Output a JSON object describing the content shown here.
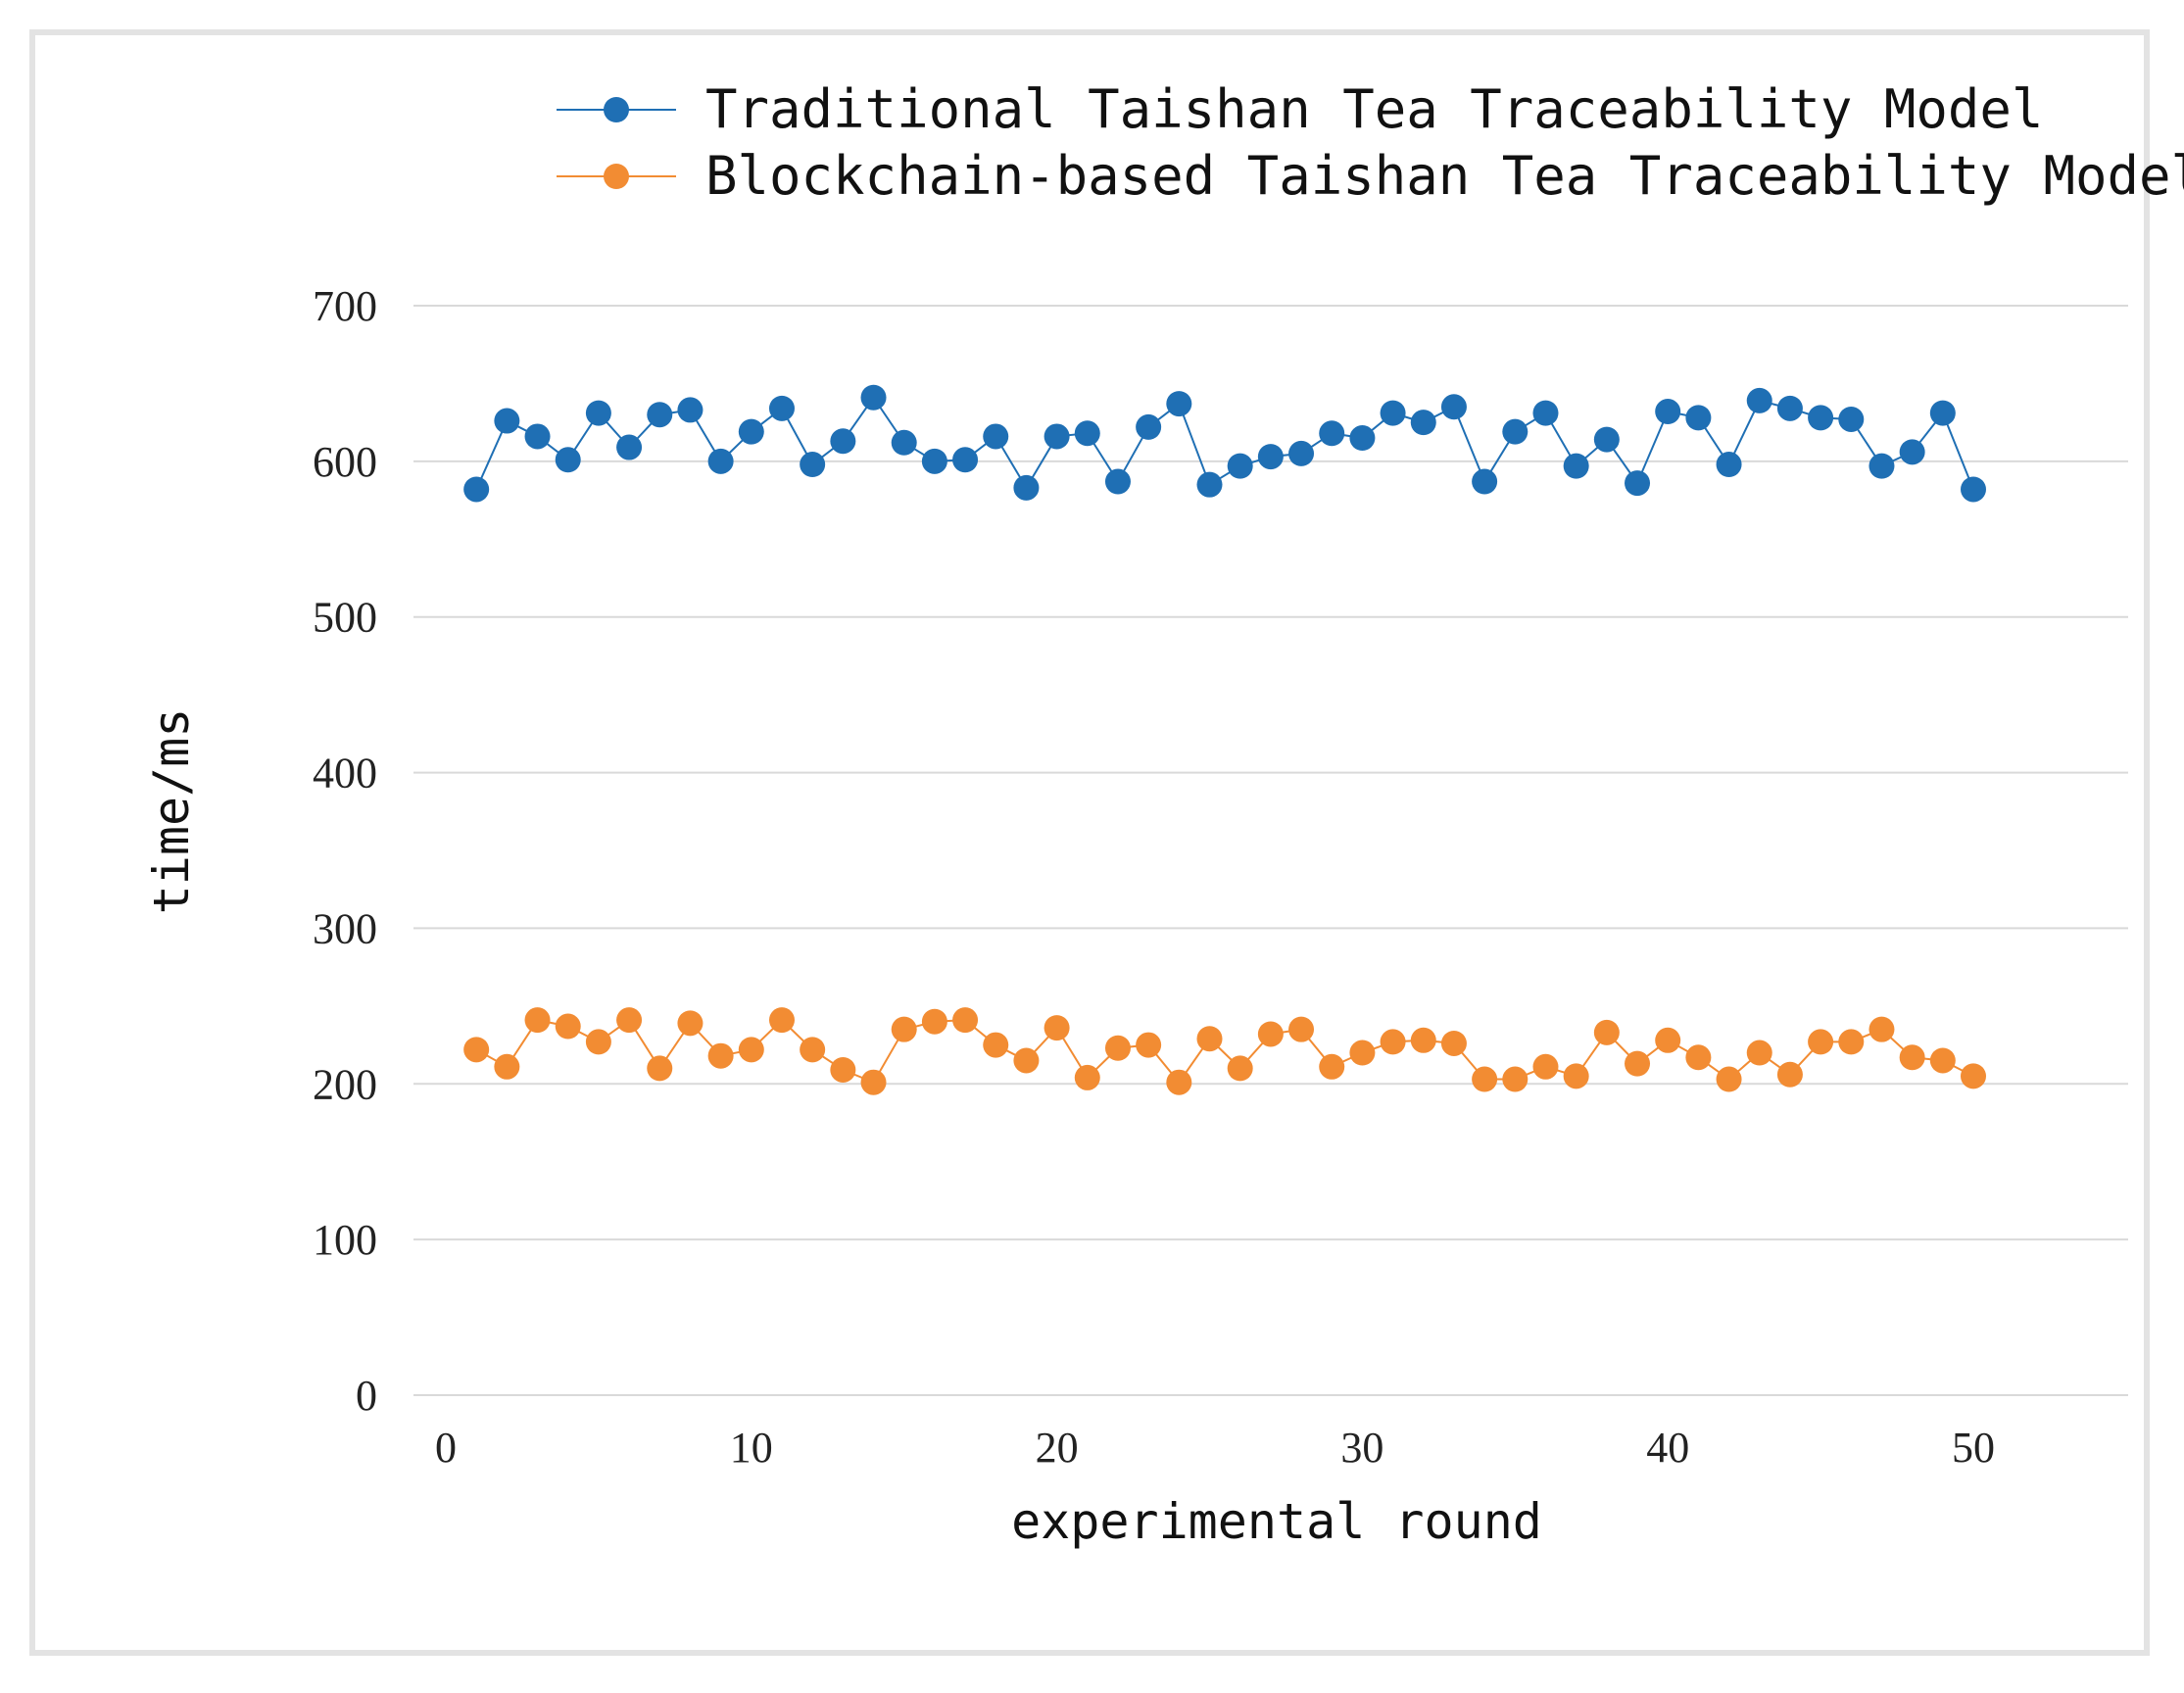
{
  "chart_data": {
    "type": "line",
    "title": "",
    "xlabel": "experimental round",
    "ylabel": "time/ms",
    "xlim": [
      0,
      55
    ],
    "ylim": [
      0,
      700
    ],
    "x_ticks": [
      0,
      10,
      20,
      30,
      40,
      50
    ],
    "y_ticks": [
      0,
      100,
      200,
      300,
      400,
      500,
      600,
      700
    ],
    "grid": true,
    "legend_position": "top",
    "x": [
      1,
      2,
      3,
      4,
      5,
      6,
      7,
      8,
      9,
      10,
      11,
      12,
      13,
      14,
      15,
      16,
      17,
      18,
      19,
      20,
      21,
      22,
      23,
      24,
      25,
      26,
      27,
      28,
      29,
      30,
      31,
      32,
      33,
      34,
      35,
      36,
      37,
      38,
      39,
      40,
      41,
      42,
      43,
      44,
      45,
      46,
      47,
      48,
      49,
      50
    ],
    "series": [
      {
        "name": "Traditional Taishan Tea Traceability Model",
        "color": "#1f6fb4",
        "values": [
          582,
          626,
          616,
          601,
          631,
          609,
          630,
          633,
          600,
          619,
          634,
          598,
          613,
          641,
          612,
          600,
          601,
          616,
          583,
          616,
          618,
          587,
          622,
          637,
          585,
          597,
          603,
          605,
          618,
          615,
          631,
          625,
          635,
          587,
          619,
          631,
          597,
          614,
          586,
          632,
          628,
          598,
          639,
          634,
          628,
          627,
          597,
          606,
          631,
          582
        ]
      },
      {
        "name": "Blockchain-based Taishan Tea Traceability Model",
        "color": "#f28c33",
        "values": [
          222,
          211,
          241,
          237,
          227,
          241,
          210,
          239,
          218,
          222,
          241,
          222,
          209,
          201,
          235,
          240,
          241,
          225,
          215,
          236,
          204,
          223,
          225,
          201,
          229,
          210,
          232,
          235,
          211,
          220,
          227,
          228,
          226,
          203,
          203,
          211,
          205,
          233,
          213,
          228,
          217,
          203,
          220,
          206,
          227,
          227,
          235,
          217,
          215,
          205
        ]
      }
    ]
  }
}
